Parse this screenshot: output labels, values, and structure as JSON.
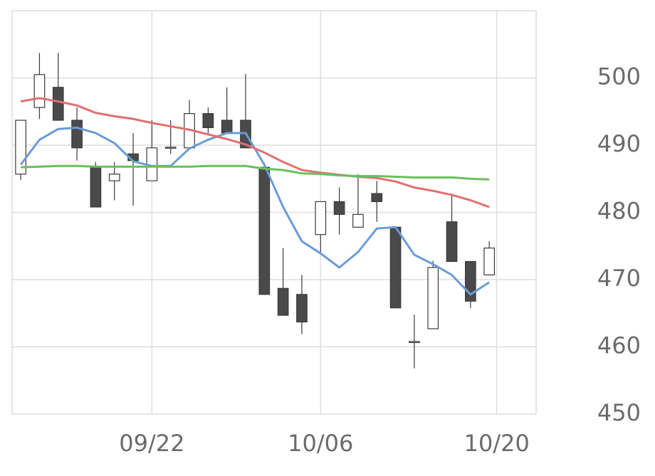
{
  "chart_data": {
    "type": "candlestick",
    "x": [
      0,
      1,
      2,
      3,
      4,
      5,
      6,
      7,
      8,
      9,
      10,
      11,
      12,
      13,
      14,
      15,
      16,
      17,
      18,
      19,
      20,
      21,
      22,
      23,
      24,
      25
    ],
    "open": [
      485.7,
      495.6,
      498.6,
      493.7,
      486.7,
      484.7,
      488.7,
      484.7,
      489.6,
      489.6,
      494.7,
      493.7,
      493.7,
      486.7,
      468.7,
      467.8,
      476.7,
      481.6,
      477.8,
      482.8,
      477.8,
      460.8,
      462.7,
      478.6,
      472.7,
      470.7
    ],
    "high": [
      493.7,
      503.7,
      503.7,
      495.6,
      487.5,
      487.5,
      491.8,
      493.7,
      493.7,
      496.7,
      495.6,
      498.6,
      500.6,
      486.7,
      474.7,
      470.7,
      481.6,
      483.7,
      485.7,
      484.7,
      477.8,
      464.8,
      472.8,
      482.8,
      472.7,
      475.7
    ],
    "low": [
      484.8,
      493.9,
      493.7,
      487.7,
      480.8,
      481.8,
      481.0,
      484.7,
      488.7,
      489.6,
      491.6,
      491.8,
      489.6,
      467.8,
      464.7,
      461.9,
      473.9,
      476.7,
      477.8,
      478.6,
      465.8,
      456.8,
      462.7,
      472.7,
      465.8,
      470.7
    ],
    "close": [
      493.7,
      500.5,
      493.7,
      489.6,
      480.8,
      485.7,
      487.7,
      489.6,
      489.7,
      494.7,
      492.6,
      491.8,
      489.6,
      467.8,
      464.7,
      463.7,
      481.6,
      479.7,
      479.7,
      481.6,
      465.8,
      460.8,
      471.8,
      472.7,
      466.8,
      474.7
    ],
    "up_color": "#ffffff",
    "down_color": "#4a4a4a",
    "edge_color": "#3a3a3a",
    "lines": [
      {
        "color": "#6a9bd8",
        "values": [
          487.1,
          490.8,
          492.4,
          492.6,
          491.8,
          490.3,
          487.6,
          486.9,
          486.9,
          489.5,
          490.8,
          491.8,
          491.8,
          487.1,
          480.8,
          475.7,
          473.9,
          471.8,
          474.1,
          477.6,
          477.8,
          473.7,
          472.3,
          470.7,
          467.8,
          469.6
        ]
      },
      {
        "color": "#e07070",
        "values": [
          496.5,
          497.0,
          496.5,
          495.9,
          494.8,
          494.3,
          493.9,
          493.3,
          492.8,
          492.3,
          491.6,
          490.9,
          490.1,
          488.9,
          487.5,
          486.3,
          485.9,
          485.6,
          485.3,
          485.1,
          484.6,
          483.7,
          483.2,
          482.6,
          481.8,
          480.8
        ]
      },
      {
        "color": "#6abf5e",
        "values": [
          486.7,
          486.8,
          486.9,
          486.9,
          486.8,
          486.8,
          486.8,
          486.8,
          486.8,
          486.8,
          486.9,
          486.9,
          486.9,
          486.5,
          486.3,
          485.8,
          485.7,
          485.5,
          485.4,
          485.4,
          485.3,
          485.2,
          485.2,
          485.2,
          485.0,
          484.9
        ]
      }
    ],
    "xlim": [
      -0.46,
      27.5
    ],
    "xticks": [
      {
        "value": 7,
        "label": "09/22"
      },
      {
        "value": 16,
        "label": "10/06"
      },
      {
        "value": 25.4,
        "label": "10/20"
      }
    ],
    "ylim": [
      450,
      510
    ],
    "yticks": [
      450,
      460,
      470,
      480,
      490,
      500
    ],
    "grid": true
  }
}
